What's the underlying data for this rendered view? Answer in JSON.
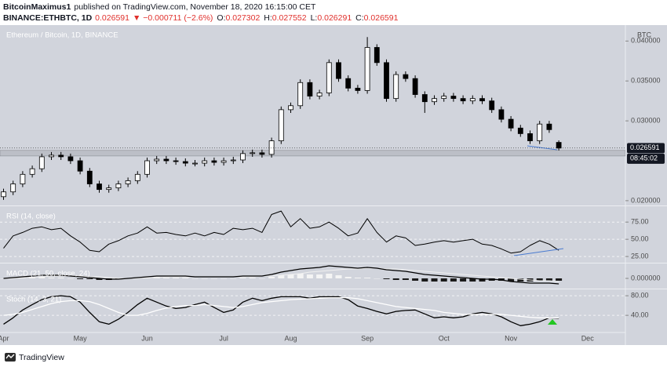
{
  "header": {
    "author": "BitcoinMaximus1",
    "byline": "published on TradingView.com, November 18, 2020 16:15:00 CET",
    "symbol": "BINANCE:ETHBTC, 1D",
    "price": "0.026591",
    "change": "▼ −0.000711 (−2.6%)",
    "ohlc": [
      {
        "label": "O:",
        "value": "0.027302"
      },
      {
        "label": "H:",
        "value": "0.027552"
      },
      {
        "label": "L:",
        "value": "0.026291"
      },
      {
        "label": "C:",
        "value": "0.026591"
      }
    ]
  },
  "footer": {
    "brand": "TradingView"
  },
  "chart_data": [
    {
      "type": "candlestick",
      "title": "Ethereum / Bitcoin, 1D, BINANCE",
      "unit": "BTC",
      "open": [
        0.0205,
        0.0211,
        0.0221,
        0.0233,
        0.024,
        0.0255,
        0.0257,
        0.0255,
        0.025,
        0.0237,
        0.0221,
        0.0214,
        0.0216,
        0.0221,
        0.0225,
        0.0233,
        0.025,
        0.0252,
        0.025,
        0.0249,
        0.0247,
        0.0247,
        0.025,
        0.0248,
        0.025,
        0.0251,
        0.0259,
        0.026,
        0.0258,
        0.0275,
        0.0314,
        0.0319,
        0.0348,
        0.0331,
        0.0335,
        0.0373,
        0.0353,
        0.0341,
        0.0338,
        0.0392,
        0.0373,
        0.0328,
        0.0358,
        0.0353,
        0.0333,
        0.0324,
        0.0328,
        0.0331,
        0.0328,
        0.0325,
        0.0328,
        0.0325,
        0.0314,
        0.0302,
        0.0291,
        0.0284,
        0.0275,
        0.0296,
        0.027302,
        null,
        null,
        null,
        null,
        null,
        null,
        null
      ],
      "high": [
        0.0215,
        0.0225,
        0.0237,
        0.0244,
        0.0259,
        0.0261,
        0.0261,
        0.0259,
        0.0254,
        0.0241,
        0.0225,
        0.022,
        0.0225,
        0.0229,
        0.0237,
        0.0254,
        0.0256,
        0.0256,
        0.0254,
        0.0253,
        0.0251,
        0.0254,
        0.0254,
        0.0254,
        0.0255,
        0.0263,
        0.0264,
        0.0264,
        0.0279,
        0.0318,
        0.0323,
        0.0352,
        0.0352,
        0.0339,
        0.0377,
        0.0377,
        0.0357,
        0.0345,
        0.0405,
        0.0396,
        0.0377,
        0.0362,
        0.0362,
        0.0357,
        0.0337,
        0.0332,
        0.0335,
        0.0335,
        0.0332,
        0.0332,
        0.0332,
        0.0329,
        0.0318,
        0.0306,
        0.0295,
        0.0288,
        0.03,
        0.03,
        0.027552,
        null,
        null,
        null,
        null,
        null,
        null,
        null
      ],
      "low": [
        0.0201,
        0.0207,
        0.0217,
        0.0229,
        0.0236,
        0.0251,
        0.0251,
        0.0246,
        0.0233,
        0.0217,
        0.021,
        0.021,
        0.0212,
        0.0217,
        0.0221,
        0.0229,
        0.0246,
        0.0246,
        0.0245,
        0.0243,
        0.0243,
        0.0243,
        0.0244,
        0.0244,
        0.0246,
        0.0247,
        0.0255,
        0.0254,
        0.0254,
        0.0271,
        0.031,
        0.0315,
        0.0327,
        0.0327,
        0.0331,
        0.0349,
        0.0337,
        0.0334,
        0.0334,
        0.0369,
        0.0324,
        0.0324,
        0.0349,
        0.0329,
        0.031,
        0.032,
        0.0324,
        0.0324,
        0.0321,
        0.0321,
        0.0321,
        0.031,
        0.0298,
        0.0287,
        0.028,
        0.0271,
        0.0271,
        0.0285,
        0.026291,
        null,
        null,
        null,
        null,
        null,
        null,
        null
      ],
      "close": [
        0.0211,
        0.0221,
        0.0233,
        0.024,
        0.0255,
        0.0257,
        0.0255,
        0.025,
        0.0237,
        0.0221,
        0.0214,
        0.0216,
        0.0221,
        0.0225,
        0.0233,
        0.025,
        0.0252,
        0.025,
        0.0249,
        0.0247,
        0.0247,
        0.025,
        0.0248,
        0.025,
        0.0251,
        0.0259,
        0.026,
        0.0258,
        0.0275,
        0.0314,
        0.0319,
        0.0348,
        0.0331,
        0.0335,
        0.0373,
        0.0353,
        0.0341,
        0.0338,
        0.0392,
        0.0373,
        0.0328,
        0.0358,
        0.0353,
        0.0333,
        0.0324,
        0.0328,
        0.0331,
        0.0328,
        0.0325,
        0.0328,
        0.0325,
        0.0314,
        0.0302,
        0.0291,
        0.0284,
        0.0275,
        0.0296,
        0.0289,
        0.026591,
        null,
        null,
        null,
        null,
        null,
        null,
        null
      ],
      "up_color": "#ffffff",
      "down_color": "#000000",
      "ylim": [
        0.0194,
        0.042
      ],
      "yticks": [
        {
          "value": 0.02,
          "label": "0.020000"
        },
        {
          "value": 0.03,
          "label": "0.030000"
        },
        {
          "value": 0.035,
          "label": "0.035000"
        },
        {
          "value": 0.04,
          "label": "0.040000"
        }
      ],
      "grid": false,
      "zone": [
        0.0256,
        0.0263
      ],
      "last_value_label": "0.026591",
      "countdown": "08:45:02"
    },
    {
      "type": "line",
      "title": "RSI (14, close)",
      "values": [
        37,
        55,
        60,
        66,
        68,
        64,
        66,
        55,
        46,
        34,
        32,
        43,
        48,
        55,
        59,
        68,
        59,
        60,
        57,
        55,
        59,
        55,
        60,
        57,
        66,
        64,
        66,
        60,
        86,
        91,
        68,
        80,
        66,
        68,
        75,
        66,
        55,
        59,
        80,
        60,
        46,
        55,
        52,
        41,
        43,
        46,
        48,
        46,
        48,
        50,
        43,
        41,
        36,
        30,
        32,
        41,
        48,
        43,
        34,
        null,
        null,
        null,
        null,
        null,
        null,
        null
      ],
      "color": "#000000",
      "ylim": [
        16,
        98
      ],
      "yticks": [
        {
          "value": 25,
          "label": "25.00"
        },
        {
          "value": 50,
          "label": "50.00"
        },
        {
          "value": 75,
          "label": "75.00"
        }
      ],
      "grid": true
    },
    {
      "type": "macd",
      "title": "MACD (21, 50, close, 24)",
      "macd": [
        0,
        0.0001,
        0.0002,
        0.0003,
        0.0004,
        0.0004,
        0.0004,
        0.0003,
        0.0002,
        0.0001,
        0,
        -0.0001,
        -0.0001,
        0,
        0.0001,
        0.0002,
        0.0003,
        0.0003,
        0.0003,
        0.0003,
        0.0002,
        0.0002,
        0.0002,
        0.0002,
        0.0002,
        0.0003,
        0.0003,
        0.0003,
        0.0005,
        0.0008,
        0.001,
        0.0012,
        0.0013,
        0.0014,
        0.0016,
        0.0015,
        0.0014,
        0.0013,
        0.0014,
        0.0013,
        0.0011,
        0.001,
        0.0009,
        0.0007,
        0.0005,
        0.0004,
        0.0003,
        0.0002,
        0.0001,
        0,
        -0.0001,
        -0.0001,
        -0.0002,
        -0.0004,
        -0.0005,
        -0.0006,
        -0.0006,
        -0.0006,
        -0.0007,
        null,
        null,
        null,
        null,
        null,
        null,
        null
      ],
      "signal": [
        0,
        0,
        0.0001,
        0.0001,
        0.0002,
        0.0003,
        0.0003,
        0.0003,
        0.0003,
        0.0002,
        0.0002,
        0.0001,
        0,
        0,
        0,
        0.0001,
        0.0001,
        0.0002,
        0.0002,
        0.0002,
        0.0002,
        0.0002,
        0.0002,
        0.0002,
        0.0002,
        0.0002,
        0.0002,
        0.0003,
        0.0003,
        0.0004,
        0.0005,
        0.0006,
        0.0008,
        0.0009,
        0.001,
        0.0011,
        0.0012,
        0.0012,
        0.0013,
        0.0013,
        0.0012,
        0.0012,
        0.0011,
        0.001,
        0.0009,
        0.0008,
        0.0007,
        0.0006,
        0.0005,
        0.0004,
        0.0003,
        0.0002,
        0.0001,
        0,
        -0.0001,
        -0.0002,
        -0.0003,
        -0.0003,
        -0.0004,
        null,
        null,
        null,
        null,
        null,
        null,
        null
      ],
      "histogram": [
        0,
        0.0001,
        0.0001,
        0.0002,
        0.0002,
        0.0001,
        0.0001,
        0,
        -0.0001,
        -0.0001,
        -0.0002,
        -0.0002,
        -0.0001,
        0,
        0.0001,
        0.0001,
        0.0002,
        0.0001,
        0.0001,
        0.0001,
        0,
        0,
        0,
        0,
        0,
        0.0001,
        0.0001,
        0,
        0.0002,
        0.0004,
        0.0005,
        0.0006,
        0.0005,
        0.0005,
        0.0006,
        0.0004,
        0.0002,
        0.0001,
        0.0001,
        0,
        -0.0001,
        -0.0002,
        -0.0002,
        -0.0003,
        -0.0004,
        -0.0004,
        -0.0004,
        -0.0004,
        -0.0004,
        -0.0004,
        -0.0004,
        -0.0003,
        -0.0003,
        -0.0004,
        -0.0004,
        -0.0004,
        -0.0003,
        -0.0003,
        -0.0003,
        null,
        null,
        null,
        null,
        null,
        null,
        null
      ],
      "macd_color": "#000000",
      "signal_color": "#f0f0f0",
      "up_color": "#f4f4f4",
      "down_color": "#1a1a1a",
      "ylim": [
        -0.0013,
        0.0019
      ],
      "yticks": [
        {
          "value": 0,
          "label": "0.000000"
        }
      ],
      "grid": false
    },
    {
      "type": "line",
      "title": "Stoch (14, 3, 21)",
      "categories": [
        "Apr",
        null,
        null,
        null,
        null,
        null,
        null,
        null,
        "May",
        null,
        null,
        null,
        null,
        null,
        null,
        "Jun",
        null,
        null,
        null,
        null,
        null,
        null,
        null,
        "Jul",
        null,
        null,
        null,
        null,
        null,
        null,
        "Aug",
        null,
        null,
        null,
        null,
        null,
        null,
        null,
        "Sep",
        null,
        null,
        null,
        null,
        null,
        null,
        null,
        "Oct",
        null,
        null,
        null,
        null,
        null,
        null,
        "Nov",
        null,
        null,
        null,
        null,
        null,
        null,
        null,
        "Dec",
        null,
        null,
        null,
        null
      ],
      "series": [
        {
          "color": "#000000",
          "values": [
            22,
            35,
            51,
            62,
            72,
            78,
            80,
            78,
            67,
            46,
            27,
            22,
            32,
            46,
            62,
            75,
            67,
            59,
            54,
            56,
            62,
            67,
            56,
            46,
            51,
            67,
            75,
            70,
            75,
            78,
            78,
            78,
            75,
            78,
            78,
            78,
            72,
            59,
            54,
            48,
            43,
            48,
            50,
            51,
            43,
            35,
            37,
            35,
            37,
            43,
            46,
            43,
            37,
            27,
            19,
            22,
            27,
            35,
            34,
            null,
            null,
            null,
            null,
            null,
            null,
            null
          ]
        },
        {
          "color": "#ffffff",
          "values": [
            40,
            42,
            46,
            52,
            58,
            64,
            68,
            70,
            70,
            68,
            62,
            54,
            46,
            40,
            40,
            44,
            50,
            55,
            58,
            60,
            60,
            62,
            60,
            58,
            56,
            58,
            62,
            66,
            68,
            70,
            72,
            73,
            74,
            75,
            76,
            76,
            76,
            74,
            70,
            66,
            62,
            58,
            56,
            54,
            52,
            50,
            46,
            44,
            42,
            42,
            42,
            42,
            42,
            40,
            38,
            36,
            35,
            35,
            35,
            null,
            null,
            null,
            null,
            null,
            null,
            null
          ]
        }
      ],
      "ylim": [
        5,
        93
      ],
      "yticks": [
        {
          "value": 40,
          "label": "40.00"
        },
        {
          "value": 80,
          "label": "80.00"
        }
      ],
      "grid": true
    }
  ]
}
